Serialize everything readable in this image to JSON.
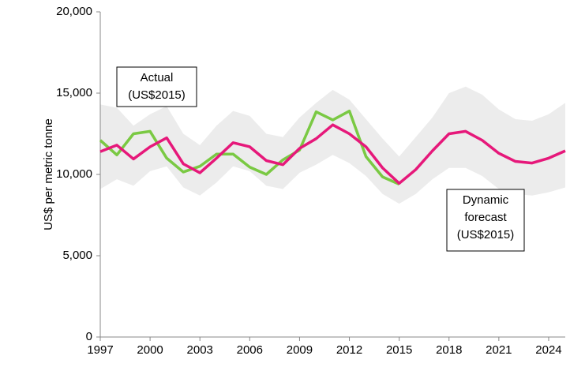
{
  "chart_data": {
    "type": "line",
    "y_label": "US$ per metric tonne",
    "x": [
      1997,
      1998,
      1999,
      2000,
      2001,
      2002,
      2003,
      2004,
      2005,
      2006,
      2007,
      2008,
      2009,
      2010,
      2011,
      2012,
      2013,
      2014,
      2015,
      2016,
      2017,
      2018,
      2019,
      2020,
      2021,
      2022,
      2023,
      2024,
      2025
    ],
    "series": [
      {
        "color": "#7ac943",
        "values": [
          12100,
          11200,
          12500,
          12650,
          11000,
          10150,
          10500,
          11250,
          11250,
          10450,
          10000,
          10900,
          11500,
          13850,
          13350,
          13900,
          11100,
          9850,
          9400,
          null,
          null,
          null,
          null,
          null,
          null,
          null,
          null,
          null,
          null
        ]
      },
      {
        "color": "#e6187a",
        "values": [
          11400,
          11800,
          10950,
          11700,
          12250,
          10650,
          10100,
          11000,
          11950,
          11700,
          10850,
          10600,
          11600,
          12200,
          13050,
          12500,
          11700,
          10400,
          9450,
          10300,
          11450,
          12500,
          12650,
          12100,
          11300,
          10800,
          10700,
          11000,
          11450
        ]
      }
    ],
    "band": {
      "color": "#ececec",
      "upper": [
        14300,
        14100,
        13000,
        13700,
        14200,
        12500,
        11800,
        13000,
        13900,
        13600,
        12500,
        12300,
        13500,
        14400,
        15200,
        14600,
        13400,
        12200,
        11100,
        12300,
        13500,
        15000,
        15400,
        14900,
        14000,
        13400,
        13300,
        13700,
        14400
      ],
      "lower": [
        9100,
        9700,
        9300,
        10200,
        10500,
        9200,
        8700,
        9500,
        10500,
        10200,
        9300,
        9100,
        10100,
        10600,
        11200,
        10700,
        9900,
        8800,
        8200,
        8800,
        9700,
        10400,
        10400,
        9900,
        9100,
        8800,
        8700,
        8900,
        9200
      ]
    },
    "annotations": [
      {
        "lines": [
          "Actual",
          "(US$2015)"
        ]
      },
      {
        "lines": [
          "Dynamic",
          "forecast",
          "(US$2015)"
        ]
      }
    ],
    "xlim": [
      1997,
      2025
    ],
    "xticks": [
      1997,
      2000,
      2003,
      2006,
      2009,
      2012,
      2015,
      2018,
      2021,
      2024
    ],
    "ylim": [
      0,
      20000
    ],
    "yticks": [
      0,
      {
        "value": 5000,
        "label": "5,000"
      },
      {
        "value": 10000,
        "label": "10,000"
      },
      {
        "value": 15000,
        "label": "15,000"
      },
      {
        "value": 20000,
        "label": "20,000"
      }
    ]
  }
}
